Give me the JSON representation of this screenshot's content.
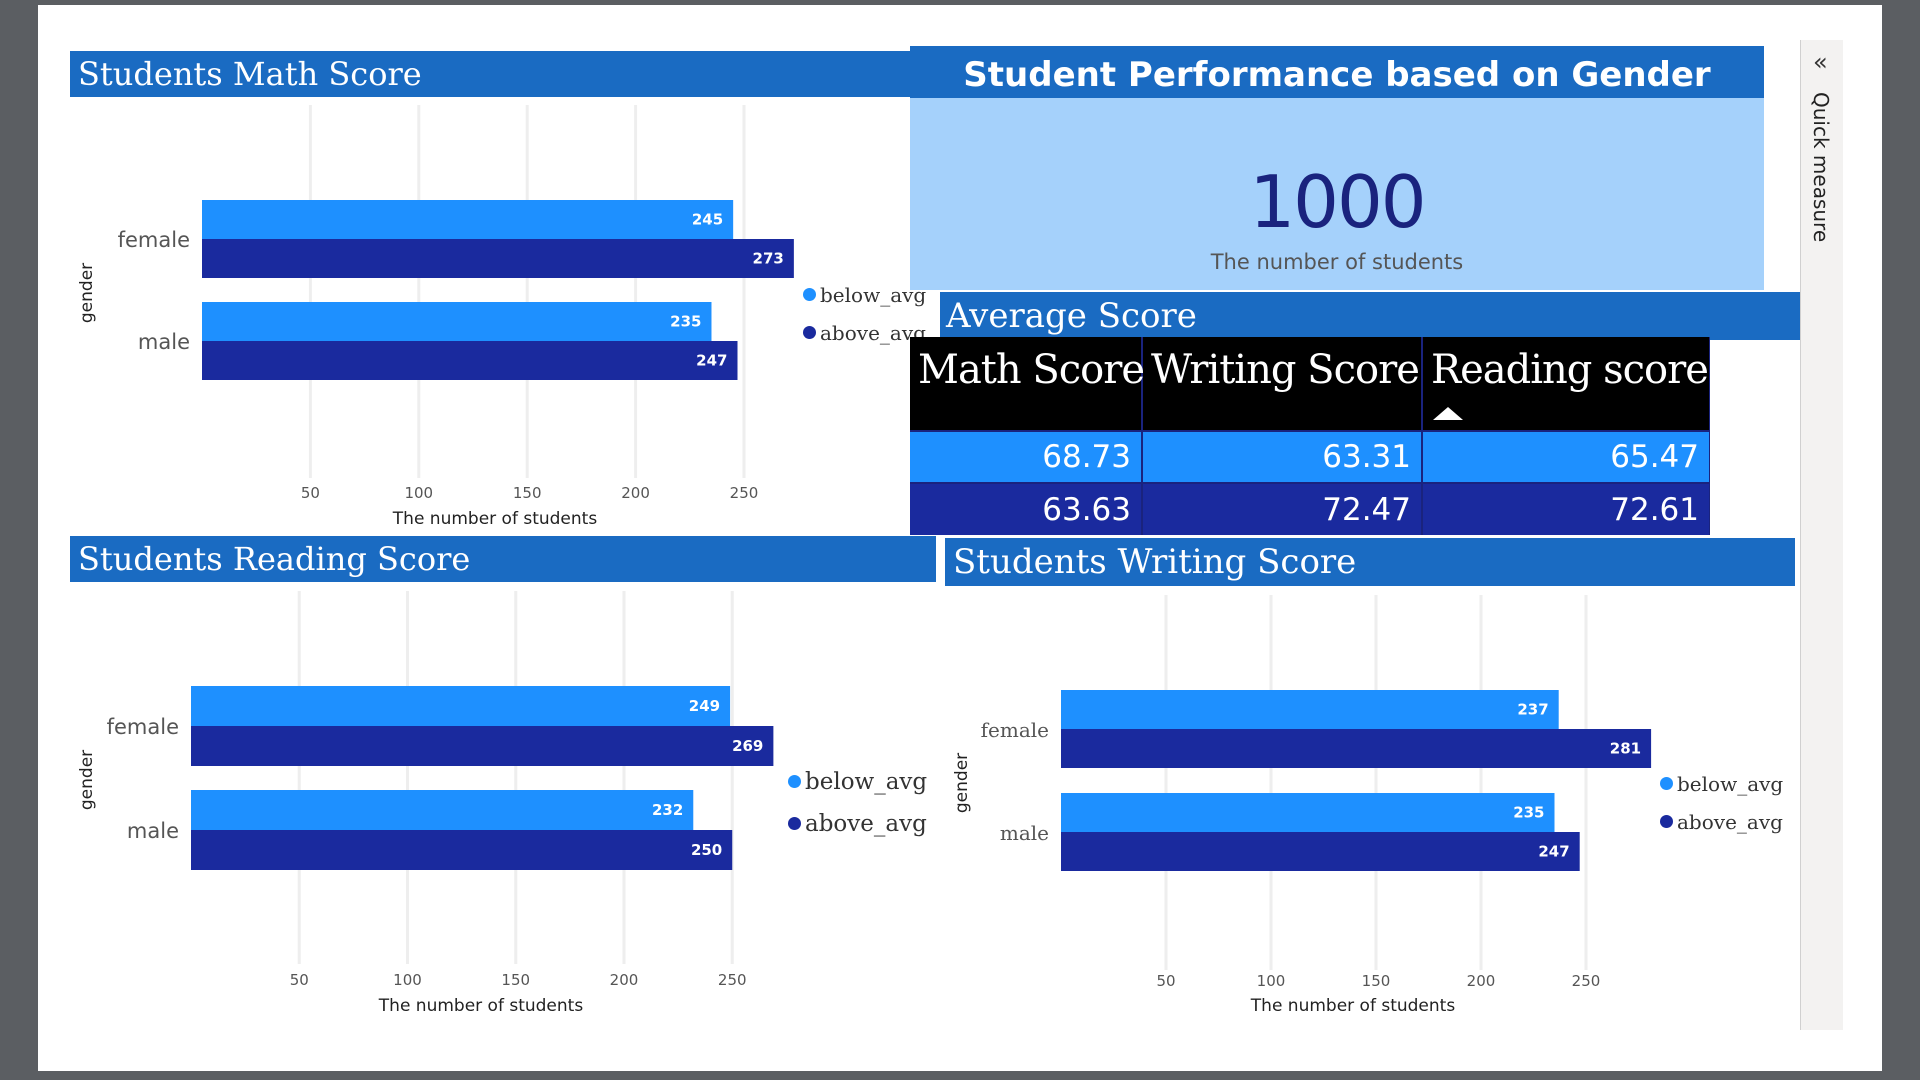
{
  "panels": {
    "math": {
      "title": "Students Math Score"
    },
    "reading": {
      "title": "Students Reading Score"
    },
    "writing": {
      "title": "Students Writing Score"
    },
    "average": {
      "title": "Average Score"
    },
    "performance": {
      "title": "Student Performance based on Gender"
    }
  },
  "kpi": {
    "value": "1000",
    "label": "The number of students"
  },
  "average_table": {
    "headers": [
      "Math Score",
      "Writing Score",
      "Reading score"
    ],
    "sorted_column": "Reading score",
    "rows": [
      [
        "68.73",
        "63.31",
        "65.47"
      ],
      [
        "63.63",
        "72.47",
        "72.61"
      ]
    ]
  },
  "quick_measure": {
    "label": "Quick measure",
    "icon": "double-chevron-left-icon"
  },
  "colors": {
    "below_avg": "#1e90ff",
    "above_avg": "#1a2a9e",
    "header": "#1a6bc2",
    "card": "#a5d1fb"
  },
  "chart_data": [
    {
      "type": "bar",
      "title": "Students Math Score",
      "categories": [
        "female",
        "male"
      ],
      "series": [
        {
          "name": "below_avg",
          "values": [
            245,
            235
          ]
        },
        {
          "name": "above_avg",
          "values": [
            273,
            247
          ]
        }
      ],
      "xlabel": "The number of students",
      "ylabel": "gender",
      "xticks": [
        50,
        100,
        150,
        200,
        250
      ],
      "legend": [
        "below_avg",
        "above_avg"
      ],
      "legend_position": "right",
      "grid": true
    },
    {
      "type": "bar",
      "title": "Students Reading Score",
      "categories": [
        "female",
        "male"
      ],
      "series": [
        {
          "name": "below_avg",
          "values": [
            249,
            232
          ]
        },
        {
          "name": "above_avg",
          "values": [
            269,
            250
          ]
        }
      ],
      "xlabel": "The number of students",
      "ylabel": "gender",
      "xticks": [
        50,
        100,
        150,
        200,
        250
      ],
      "legend": [
        "below_avg",
        "above_avg"
      ],
      "legend_position": "right",
      "grid": true
    },
    {
      "type": "bar",
      "title": "Students Writing Score",
      "categories": [
        "female",
        "male"
      ],
      "series": [
        {
          "name": "below_avg",
          "values": [
            237,
            235
          ]
        },
        {
          "name": "above_avg",
          "values": [
            281,
            247
          ]
        }
      ],
      "xlabel": "The number of students",
      "ylabel": "gender",
      "xticks": [
        50,
        100,
        150,
        200,
        250
      ],
      "legend": [
        "below_avg",
        "above_avg"
      ],
      "legend_position": "right",
      "grid": true
    }
  ]
}
